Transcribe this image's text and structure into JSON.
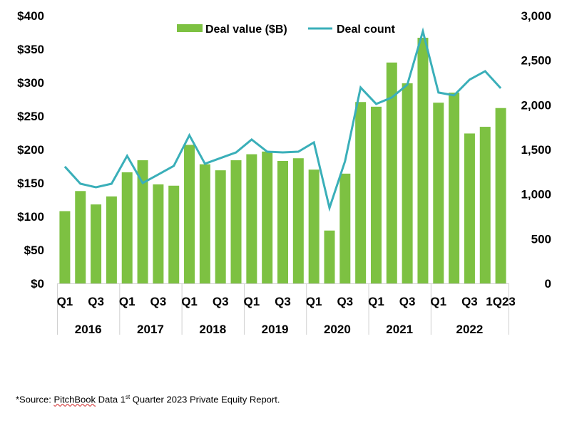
{
  "chart_data": {
    "type": "bar",
    "title": "",
    "xlabel": "",
    "ylabel": "",
    "y2label": "",
    "legend_position": "top",
    "grid": false,
    "ylim": [
      0,
      400
    ],
    "y2lim": [
      0,
      3000
    ],
    "y_ticks": [
      "$0",
      "$50",
      "$100",
      "$150",
      "$200",
      "$250",
      "$300",
      "$350",
      "$400"
    ],
    "y_tick_values": [
      0,
      50,
      100,
      150,
      200,
      250,
      300,
      350,
      400
    ],
    "y2_ticks": [
      "0",
      "500",
      "1,000",
      "1,500",
      "2,000",
      "2,500",
      "3,000"
    ],
    "y2_tick_values": [
      0,
      500,
      1000,
      1500,
      2000,
      2500,
      3000
    ],
    "categories": [
      "2016 Q1",
      "2016 Q2",
      "2016 Q3",
      "2016 Q4",
      "2017 Q1",
      "2017 Q2",
      "2017 Q3",
      "2017 Q4",
      "2018 Q1",
      "2018 Q2",
      "2018 Q3",
      "2018 Q4",
      "2019 Q1",
      "2019 Q2",
      "2019 Q3",
      "2019 Q4",
      "2020 Q1",
      "2020 Q2",
      "2020 Q3",
      "2020 Q4",
      "2021 Q1",
      "2021 Q2",
      "2021 Q3",
      "2021 Q4",
      "2022 Q1",
      "2022 Q2",
      "2022 Q3",
      "2022 Q4",
      "1Q23"
    ],
    "quarter_labels": [
      "Q1",
      "",
      "Q3",
      "",
      "Q1",
      "",
      "Q3",
      "",
      "Q1",
      "",
      "Q3",
      "",
      "Q1",
      "",
      "Q3",
      "",
      "Q1",
      "",
      "Q3",
      "",
      "Q1",
      "",
      "Q3",
      "",
      "Q1",
      "",
      "Q3",
      "",
      "1Q23"
    ],
    "year_groups": [
      {
        "label": "2016",
        "count": 4
      },
      {
        "label": "2017",
        "count": 4
      },
      {
        "label": "2018",
        "count": 4
      },
      {
        "label": "2019",
        "count": 4
      },
      {
        "label": "2020",
        "count": 4
      },
      {
        "label": "2021",
        "count": 4
      },
      {
        "label": "2022",
        "count": 5
      }
    ],
    "series": [
      {
        "name": "Deal value ($B)",
        "type": "bar",
        "axis": "left",
        "color": "#7DC142",
        "values": [
          108,
          138,
          118,
          130,
          166,
          184,
          148,
          146,
          207,
          178,
          169,
          184,
          193,
          197,
          183,
          187,
          170,
          79,
          164,
          271,
          264,
          330,
          299,
          367,
          270,
          285,
          224,
          234,
          262
        ]
      },
      {
        "name": "Deal count",
        "type": "line",
        "axis": "right",
        "color": "#3AAFB9",
        "values": [
          1309,
          1117,
          1077,
          1117,
          1429,
          1125,
          1220,
          1317,
          1660,
          1341,
          1405,
          1468,
          1612,
          1476,
          1468,
          1476,
          1580,
          846,
          1370,
          2195,
          2011,
          2083,
          2227,
          2825,
          2139,
          2107,
          2283,
          2378,
          2187
        ]
      }
    ]
  },
  "footnote": {
    "prefix": "*Source: ",
    "source_name": "PitchBook",
    "middle": " Data 1",
    "superscript": "st",
    "suffix": " Quarter 2023 Private Equity Report."
  }
}
